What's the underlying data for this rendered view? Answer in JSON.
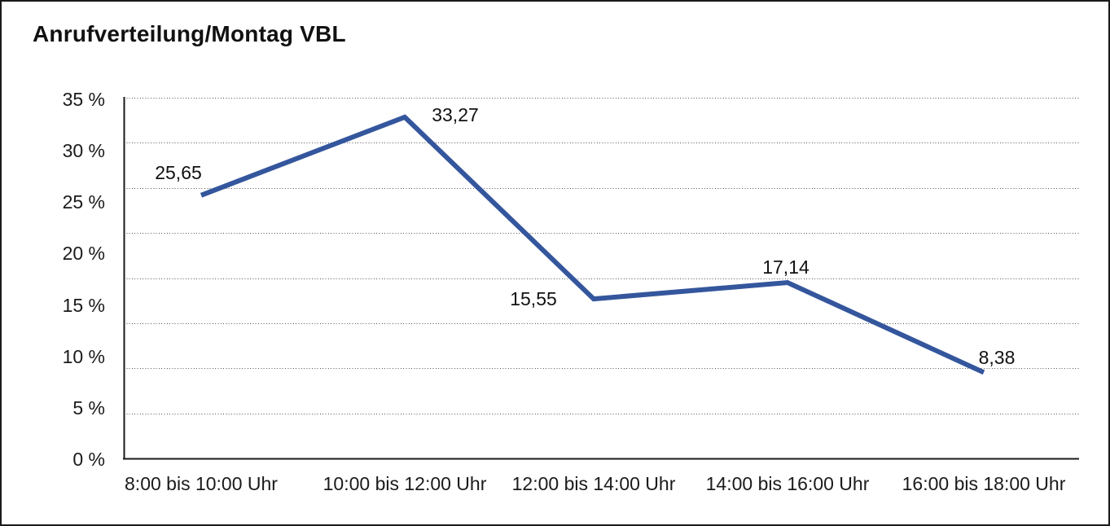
{
  "title": "Anrufverteilung/Montag VBL",
  "colors": {
    "line": "#34569D",
    "axis": "#1a1a1a",
    "grid_dots": "#555555",
    "text": "#111111",
    "background": "#ffffff",
    "border": "#1a1a1a"
  },
  "chart_data": {
    "type": "line",
    "title": "Anrufverteilung/Montag VBL",
    "categories": [
      "8:00 bis 10:00 Uhr",
      "10:00 bis 12:00 Uhr",
      "12:00 bis 14:00 Uhr",
      "14:00 bis 16:00 Uhr",
      "16:00 bis 18:00 Uhr"
    ],
    "values": [
      25.65,
      33.27,
      15.55,
      17.14,
      8.38
    ],
    "value_labels": [
      "25,65",
      "33,27",
      "15,55",
      "17,14",
      "8,38"
    ],
    "xlabel": "",
    "ylabel": "",
    "y_axis": {
      "min": 0,
      "max": 35,
      "tick_step": 5,
      "unit": "%",
      "tick_labels": [
        "35 %",
        "30 %",
        "25 %",
        "20 %",
        "15 %",
        "10 %",
        "5 %",
        "0 %"
      ]
    },
    "grid": {
      "horizontal": true,
      "style": "dotted",
      "vertical": false
    },
    "legend": "none"
  }
}
